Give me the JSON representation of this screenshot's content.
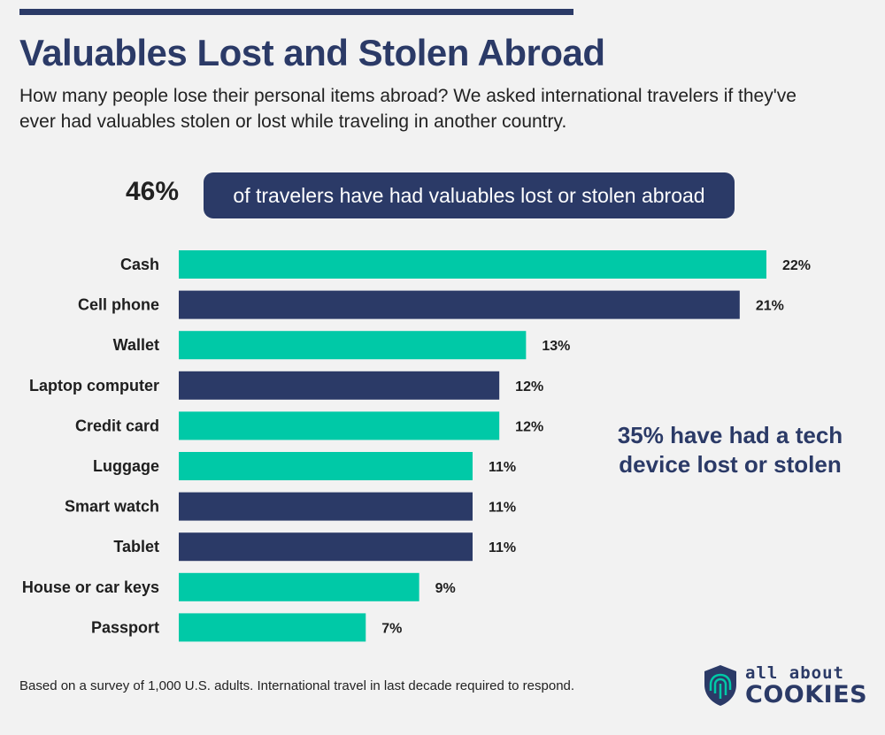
{
  "header": {
    "title": "Valuables Lost and Stolen Abroad",
    "subtitle": "How many people lose their personal items abroad? We asked international travelers if they've ever had valuables stolen or lost while traveling in another country."
  },
  "highlight": {
    "number": "46%",
    "text": "of travelers have had valuables lost or stolen abroad"
  },
  "callout": "35% have had a tech device lost or stolen",
  "footnote": "Based on a survey of 1,000 U.S. adults. International travel in last decade required to respond.",
  "logo": {
    "top": "all about",
    "bottom": "COOKIES"
  },
  "colors": {
    "navy": "#2b3a67",
    "teal": "#00c9a7",
    "background": "#f2f2f2"
  },
  "chart_data": {
    "type": "bar",
    "orientation": "horizontal",
    "categories": [
      "Cash",
      "Cell phone",
      "Wallet",
      "Laptop computer",
      "Credit card",
      "Luggage",
      "Smart watch",
      "Tablet",
      "House or car keys",
      "Passport"
    ],
    "values": [
      22,
      21,
      13,
      12,
      12,
      11,
      11,
      11,
      9,
      7
    ],
    "value_labels": [
      "22%",
      "21%",
      "13%",
      "12%",
      "12%",
      "11%",
      "11%",
      "11%",
      "9%",
      "7%"
    ],
    "is_tech_device": [
      false,
      true,
      false,
      true,
      false,
      false,
      true,
      true,
      false,
      false
    ],
    "xlim": [
      0,
      22
    ],
    "grid": false
  }
}
